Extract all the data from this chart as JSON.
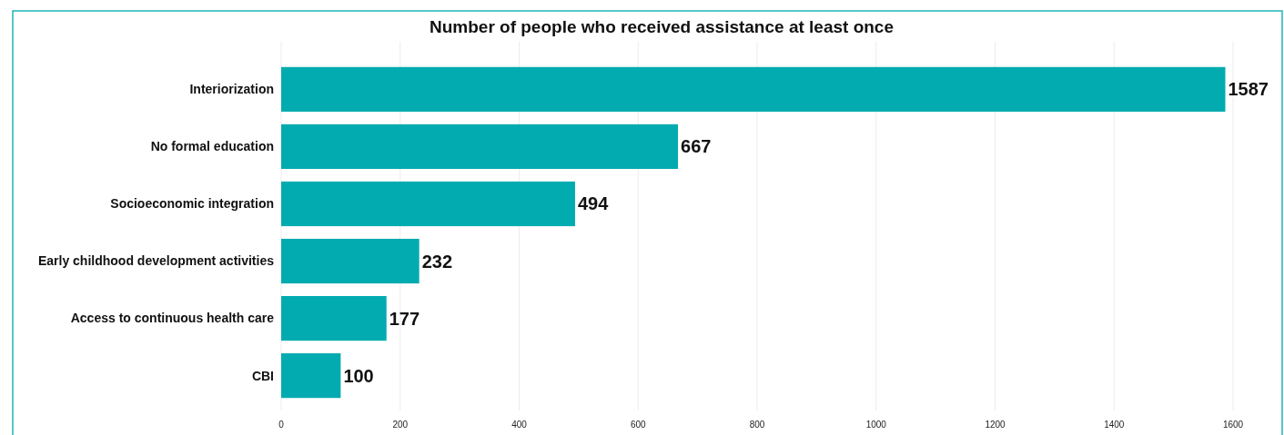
{
  "chart_data": {
    "type": "bar",
    "orientation": "horizontal",
    "title": "Number of people who received assistance at least once",
    "categories": [
      "Interiorization",
      "No formal education",
      "Socioeconomic integration",
      "Early childhood development activities",
      "Access to continuous health care",
      "CBI"
    ],
    "values": [
      1587,
      667,
      494,
      232,
      177,
      100
    ],
    "color": "#02abb0",
    "xlim": [
      0,
      1600
    ],
    "xticks": [
      0,
      200,
      400,
      600,
      800,
      1000,
      1200,
      1400,
      1600
    ],
    "grid": "x",
    "data_labels": true
  }
}
